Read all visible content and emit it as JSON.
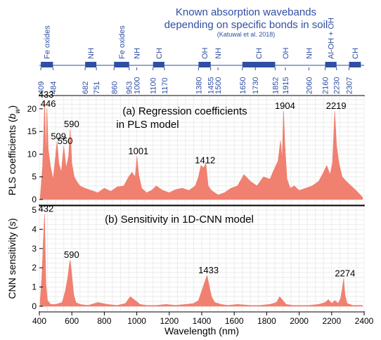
{
  "bands_header": {
    "title_line1": "Known absorption wavebands",
    "title_line2": "depending on specific bonds in soil",
    "citation": "(Katuwal et al. 2018)",
    "color": "#2f4fa3",
    "bands": [
      {
        "from": 409,
        "to": 484,
        "labels": [
          "409",
          "484"
        ],
        "bond": "Fe oxides"
      },
      {
        "from": 682,
        "to": 751,
        "labels": [
          "682",
          "751"
        ],
        "bond": "NH"
      },
      {
        "from": 860,
        "to": 953,
        "labels": [
          "860",
          "953"
        ],
        "bond": "Fe oxides"
      },
      {
        "from": 1000,
        "to": 1000,
        "labels": [
          "1000"
        ],
        "bond": "NH"
      },
      {
        "from": 1100,
        "to": 1170,
        "labels": [
          "1100",
          "1170"
        ],
        "bond": "CH"
      },
      {
        "from": 1380,
        "to": 1455,
        "labels": [
          "1380",
          "1455"
        ],
        "bond": "OH"
      },
      {
        "from": 1500,
        "to": 1500,
        "labels": [
          "1500"
        ],
        "bond": "NH"
      },
      {
        "from": 1650,
        "to": 1852,
        "labels": [
          "1650",
          "1730",
          "1852"
        ],
        "bond": "CH"
      },
      {
        "from": 1915,
        "to": 1915,
        "labels": [
          "1915"
        ],
        "bond": "OH"
      },
      {
        "from": 2060,
        "to": 2060,
        "labels": [
          "2060"
        ],
        "bond": "NH"
      },
      {
        "from": 2160,
        "to": 2230,
        "labels": [
          "2160",
          "2230"
        ],
        "bond": "Al-OH + OH"
      },
      {
        "from": 2307,
        "to": 2380,
        "labels": [
          "2307"
        ],
        "bond": "CH"
      }
    ]
  },
  "chart_data": [
    {
      "type": "area",
      "title": "(a) Regression coefficients in PLS model",
      "title_lines": [
        "(a) Regression coefficients",
        "in PLS model"
      ],
      "ylabel": "PLS coefficients (b_w)",
      "ylabel_parts": {
        "main": "PLS coefficients (",
        "italic": "b",
        "sub": "w",
        "close": ")"
      },
      "xlim": [
        400,
        2400
      ],
      "ylim": [
        0,
        22
      ],
      "yticks": [
        0,
        5,
        10,
        15,
        20
      ],
      "color": "#f08070",
      "series": [
        {
          "x": [
            405,
            420,
            433,
            440,
            446,
            455,
            470,
            485,
            495,
            509,
            520,
            535,
            550,
            565,
            580,
            590,
            600,
            615,
            630,
            650,
            680,
            720,
            760,
            800,
            840,
            880,
            920,
            950,
            970,
            990,
            1001,
            1012,
            1030,
            1060,
            1090,
            1120,
            1160,
            1200,
            1240,
            1280,
            1320,
            1360,
            1380,
            1395,
            1412,
            1425,
            1440,
            1460,
            1500,
            1540,
            1580,
            1620,
            1660,
            1700,
            1740,
            1780,
            1820,
            1850,
            1870,
            1885,
            1895,
            1904,
            1912,
            1925,
            1945,
            1970,
            2000,
            2040,
            2080,
            2120,
            2150,
            2170,
            2190,
            2205,
            2219,
            2230,
            2245,
            2265,
            2290,
            2320,
            2350,
            2390
          ],
          "values": [
            0.3,
            7.5,
            22.0,
            9.0,
            20.0,
            11.0,
            7.0,
            4.5,
            8.0,
            12.8,
            8.0,
            6.0,
            11.8,
            7.0,
            9.5,
            15.5,
            8.0,
            5.0,
            4.0,
            3.0,
            2.5,
            2.0,
            1.5,
            2.5,
            1.8,
            2.8,
            3.0,
            5.0,
            6.0,
            5.0,
            9.5,
            5.5,
            2.5,
            1.5,
            2.0,
            3.0,
            2.0,
            1.5,
            2.2,
            2.5,
            2.0,
            3.0,
            5.0,
            7.5,
            7.0,
            8.0,
            3.0,
            2.0,
            1.0,
            1.5,
            2.5,
            3.0,
            5.5,
            4.0,
            3.0,
            5.0,
            4.5,
            7.0,
            8.5,
            13.0,
            9.0,
            19.5,
            12.0,
            4.5,
            2.5,
            3.0,
            2.0,
            2.5,
            3.0,
            4.0,
            6.0,
            7.5,
            5.5,
            8.0,
            19.5,
            12.0,
            8.0,
            5.0,
            4.0,
            3.0,
            2.0,
            0.5
          ]
        }
      ],
      "annotations": [
        {
          "x": 433,
          "y": 22.0,
          "text": "433"
        },
        {
          "x": 446,
          "y": 20.0,
          "text": "446"
        },
        {
          "x": 509,
          "y": 12.8,
          "text": "509"
        },
        {
          "x": 550,
          "y": 11.8,
          "text": "550"
        },
        {
          "x": 590,
          "y": 15.5,
          "text": "590"
        },
        {
          "x": 1001,
          "y": 9.5,
          "text": "1001"
        },
        {
          "x": 1412,
          "y": 7.5,
          "text": "1412"
        },
        {
          "x": 1904,
          "y": 19.5,
          "text": "1904"
        },
        {
          "x": 2219,
          "y": 19.5,
          "text": "2219"
        }
      ]
    },
    {
      "type": "area",
      "title": "(b) Sensitivity in 1D-CNN model",
      "ylabel": "CNN sensitivity (s)",
      "ylabel_parts": {
        "main": "CNN sensitivity (",
        "italic": "s",
        "close": ")"
      },
      "xlabel": "Wavelength (nm)",
      "xlim": [
        400,
        2400
      ],
      "ylim": [
        0,
        5
      ],
      "yticks": [
        0,
        1,
        2,
        3,
        4,
        5
      ],
      "xticks": [
        400,
        600,
        800,
        1000,
        1200,
        1400,
        1600,
        1800,
        2000,
        2200,
        2400
      ],
      "color": "#f08070",
      "series": [
        {
          "x": [
            405,
            415,
            425,
            432,
            440,
            450,
            470,
            500,
            540,
            560,
            575,
            585,
            590,
            600,
            612,
            625,
            650,
            700,
            760,
            820,
            880,
            930,
            960,
            990,
            1020,
            1060,
            1120,
            1180,
            1240,
            1300,
            1350,
            1380,
            1400,
            1420,
            1433,
            1445,
            1460,
            1480,
            1520,
            1560,
            1620,
            1700,
            1760,
            1820,
            1860,
            1880,
            1900,
            1920,
            1960,
            2000,
            2060,
            2120,
            2160,
            2180,
            2200,
            2220,
            2240,
            2255,
            2265,
            2274,
            2282,
            2295,
            2330,
            2390
          ],
          "values": [
            0.3,
            1.5,
            3.5,
            4.8,
            1.2,
            0.3,
            0.1,
            0.1,
            0.2,
            0.8,
            1.5,
            2.2,
            2.4,
            1.6,
            0.6,
            0.2,
            0.1,
            0.05,
            0.2,
            0.1,
            0.05,
            0.15,
            0.5,
            0.3,
            0.1,
            0.05,
            0.05,
            0.1,
            0.05,
            0.1,
            0.15,
            0.3,
            0.8,
            1.3,
            1.6,
            1.1,
            0.5,
            0.2,
            0.1,
            0.05,
            0.1,
            0.05,
            0.05,
            0.1,
            0.2,
            0.5,
            0.3,
            0.1,
            0.05,
            0.05,
            0.05,
            0.1,
            0.2,
            0.35,
            0.15,
            0.3,
            0.15,
            0.4,
            0.9,
            1.45,
            0.6,
            0.15,
            0.05,
            0.05
          ]
        }
      ],
      "annotations": [
        {
          "x": 432,
          "y": 4.8,
          "text": "432"
        },
        {
          "x": 590,
          "y": 2.4,
          "text": "590"
        },
        {
          "x": 1433,
          "y": 1.6,
          "text": "1433"
        },
        {
          "x": 2274,
          "y": 1.45,
          "text": "2274"
        }
      ]
    }
  ]
}
